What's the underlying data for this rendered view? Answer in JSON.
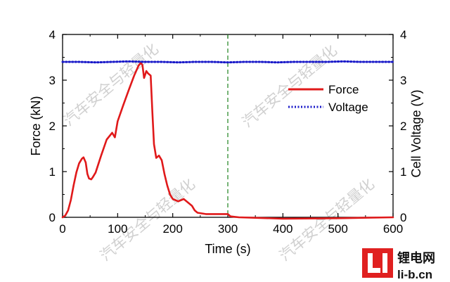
{
  "chart_data": {
    "type": "line",
    "xlabel": "Time (s)",
    "ylabel_left": "Force (kN)",
    "ylabel_right": "Cell Voltage (V)",
    "xlim": [
      0,
      600
    ],
    "ylim_left": [
      0,
      4
    ],
    "ylim_right": [
      0,
      4
    ],
    "x_ticks": [
      "0",
      "100",
      "200",
      "300",
      "400",
      "500",
      "600"
    ],
    "y_ticks_left": [
      "0",
      "1",
      "2",
      "3",
      "4"
    ],
    "y_ticks_right": [
      "0",
      "1",
      "2",
      "3",
      "4"
    ],
    "legend_position": "upper-right",
    "vertical_marker": {
      "x": 300,
      "style": "dashed",
      "color": "#2e8b2e"
    },
    "series": [
      {
        "name": "Force",
        "axis": "left",
        "color": "#e0191a",
        "style": "solid",
        "x": [
          0,
          5,
          10,
          15,
          20,
          25,
          30,
          35,
          38,
          42,
          45,
          48,
          52,
          55,
          60,
          70,
          80,
          90,
          95,
          100,
          110,
          120,
          130,
          138,
          142,
          145,
          148,
          150,
          152,
          155,
          160,
          163,
          166,
          170,
          175,
          180,
          185,
          190,
          195,
          200,
          210,
          220,
          230,
          235,
          240,
          245,
          260,
          290,
          300,
          305,
          320,
          400,
          500,
          600
        ],
        "y": [
          0,
          0.04,
          0.15,
          0.38,
          0.7,
          0.98,
          1.18,
          1.28,
          1.31,
          1.2,
          0.95,
          0.85,
          0.83,
          0.88,
          0.98,
          1.35,
          1.7,
          1.85,
          1.75,
          2.1,
          2.45,
          2.78,
          3.1,
          3.32,
          3.38,
          3.33,
          3.05,
          3.12,
          3.2,
          3.15,
          3.1,
          2.3,
          1.6,
          1.3,
          1.35,
          1.25,
          0.95,
          0.7,
          0.5,
          0.4,
          0.35,
          0.4,
          0.3,
          0.25,
          0.15,
          0.1,
          0.07,
          0.07,
          0.07,
          0.02,
          0.0,
          -0.03,
          -0.02,
          0.0
        ]
      },
      {
        "name": "Voltage",
        "axis": "right",
        "color": "#1a1ac9",
        "style": "dotted",
        "x": [
          0,
          30,
          60,
          90,
          120,
          150,
          180,
          210,
          240,
          270,
          300,
          330,
          360,
          390,
          420,
          450,
          480,
          510,
          540,
          570,
          600
        ],
        "y": [
          3.4,
          3.4,
          3.39,
          3.4,
          3.41,
          3.4,
          3.4,
          3.39,
          3.4,
          3.4,
          3.39,
          3.4,
          3.4,
          3.39,
          3.4,
          3.4,
          3.4,
          3.41,
          3.4,
          3.4,
          3.4
        ]
      }
    ]
  },
  "watermark": {
    "text": "汽车安全与轻量化"
  },
  "logo": {
    "cn": "锂电网",
    "en": "li-b.cn",
    "color": "#e02020"
  }
}
